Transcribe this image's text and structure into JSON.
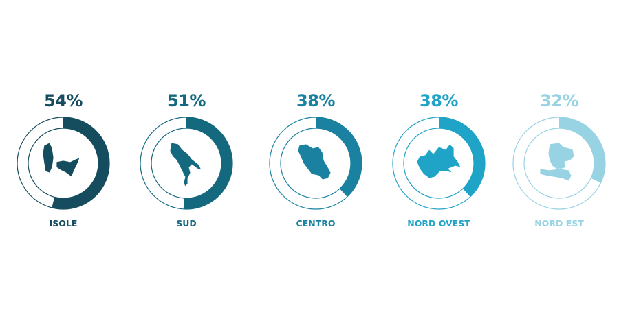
{
  "chart_data": {
    "type": "donut",
    "categories": [
      "ISOLE",
      "SUD",
      "CENTRO",
      "NORD OVEST",
      "NORD EST"
    ],
    "values": [
      54,
      51,
      38,
      38,
      32
    ],
    "value_labels": [
      "54%",
      "51%",
      "38%",
      "38%",
      "32%"
    ],
    "colors": [
      "#154d5e",
      "#15697f",
      "#1a82a0",
      "#1fa3c6",
      "#98d3e3"
    ],
    "icons": [
      "sardinia-sicily-map-icon",
      "southern-italy-map-icon",
      "central-italy-map-icon",
      "northwest-italy-map-icon",
      "northeast-italy-map-icon"
    ],
    "ylim": [
      0,
      100
    ]
  }
}
